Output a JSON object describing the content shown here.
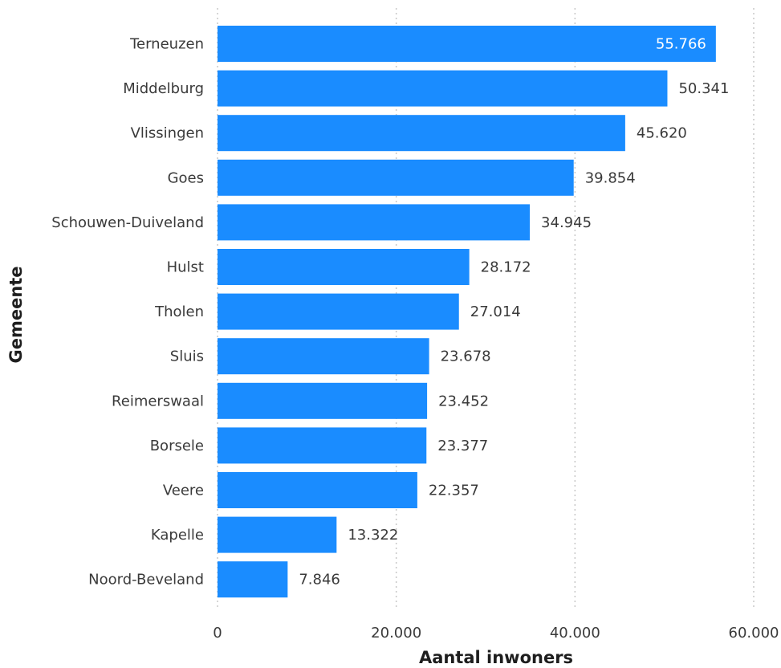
{
  "chart_data": {
    "type": "bar",
    "orientation": "horizontal",
    "categories": [
      "Terneuzen",
      "Middelburg",
      "Vlissingen",
      "Goes",
      "Schouwen-Duiveland",
      "Hulst",
      "Tholen",
      "Sluis",
      "Reimerswaal",
      "Borsele",
      "Veere",
      "Kapelle",
      "Noord-Beveland"
    ],
    "values": [
      55766,
      50341,
      45620,
      39854,
      34945,
      28172,
      27014,
      23678,
      23452,
      23377,
      22357,
      13322,
      7846
    ],
    "value_labels": [
      "55.766",
      "50.341",
      "45.620",
      "39.854",
      "34.945",
      "28.172",
      "27.014",
      "23.678",
      "23.452",
      "23.377",
      "22.357",
      "13.322",
      "7.846"
    ],
    "xlabel": "Aantal inwoners",
    "ylabel": "Gemeente",
    "xlim": [
      0,
      60000
    ],
    "xticks": [
      0,
      20000,
      40000,
      60000
    ],
    "xtick_labels": [
      "0",
      "20.000",
      "40.000",
      "60.000"
    ],
    "grid": true,
    "bar_color": "#1a8cff"
  }
}
